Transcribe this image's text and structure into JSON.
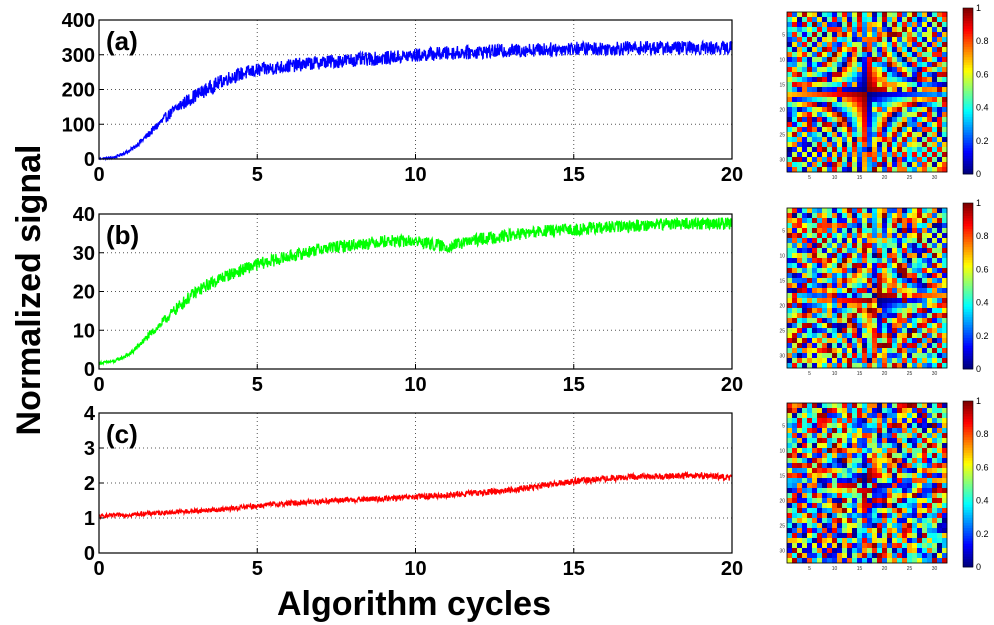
{
  "chart_data": [
    {
      "type": "line",
      "panel_label": "(a)",
      "series": [
        {
          "color": "#0000ff",
          "x": [
            0,
            0.5,
            1,
            1.5,
            2,
            2.5,
            3,
            3.5,
            4,
            4.5,
            5,
            6,
            7,
            8,
            9,
            10,
            11,
            12,
            13,
            14,
            15,
            16,
            17,
            18,
            19,
            20
          ],
          "y": [
            0,
            5,
            25,
            65,
            110,
            150,
            180,
            205,
            230,
            245,
            255,
            268,
            278,
            285,
            290,
            298,
            305,
            308,
            312,
            315,
            318,
            318,
            320,
            320,
            320,
            320
          ]
        }
      ],
      "noise": 20,
      "xlim": [
        0,
        20
      ],
      "ylim": [
        0,
        400
      ],
      "xticks": [
        0,
        5,
        10,
        15,
        20
      ],
      "yticks": [
        0,
        100,
        200,
        300,
        400
      ],
      "grid": true
    },
    {
      "type": "line",
      "panel_label": "(b)",
      "series": [
        {
          "color": "#00ff00",
          "x": [
            0,
            0.5,
            1,
            1.5,
            2,
            2.5,
            3,
            3.5,
            4,
            4.5,
            5,
            6,
            7,
            8,
            9,
            10,
            11,
            12,
            13,
            14,
            15,
            16,
            17,
            18,
            19,
            20
          ],
          "y": [
            1.5,
            2,
            4,
            8,
            12,
            16,
            19.5,
            22,
            24,
            25.5,
            27,
            29,
            31,
            32,
            33,
            33,
            31.5,
            33.5,
            34.5,
            35.5,
            36,
            36.5,
            37,
            37.5,
            37.5,
            37.5
          ]
        }
      ],
      "noise": 1.6,
      "xlim": [
        0,
        20
      ],
      "ylim": [
        0,
        40
      ],
      "xticks": [
        0,
        5,
        10,
        15,
        20
      ],
      "yticks": [
        0,
        10,
        20,
        30,
        40
      ],
      "grid": true
    },
    {
      "type": "line",
      "panel_label": "(c)",
      "series": [
        {
          "color": "#ff0000",
          "x": [
            0,
            1,
            2,
            3,
            4,
            5,
            6,
            7,
            8,
            9,
            10,
            11,
            12,
            13,
            14,
            15,
            16,
            17,
            18,
            19,
            20
          ],
          "y": [
            1.05,
            1.1,
            1.15,
            1.2,
            1.25,
            1.35,
            1.42,
            1.48,
            1.52,
            1.55,
            1.6,
            1.65,
            1.72,
            1.8,
            1.92,
            2.05,
            2.12,
            2.18,
            2.2,
            2.22,
            2.15
          ]
        }
      ],
      "noise": 0.09,
      "xlim": [
        0,
        20
      ],
      "ylim": [
        0,
        4
      ],
      "xticks": [
        0,
        5,
        10,
        15,
        20
      ],
      "yticks": [
        0,
        1,
        2,
        3,
        4
      ],
      "grid": true
    }
  ],
  "ylabel": "Normalized signal",
  "xlabel": "Algorithm cycles",
  "heatmaps": {
    "type": "heatmap",
    "colormap": "jet",
    "grid_size": 32,
    "ticks": [
      5,
      10,
      15,
      20,
      25,
      30
    ],
    "colorbar_ticks": [
      "0",
      "0.2",
      "0.4",
      "0.6",
      "0.8",
      "1"
    ],
    "count": 3,
    "noise_levels": [
      0.25,
      0.4,
      0.55
    ]
  }
}
